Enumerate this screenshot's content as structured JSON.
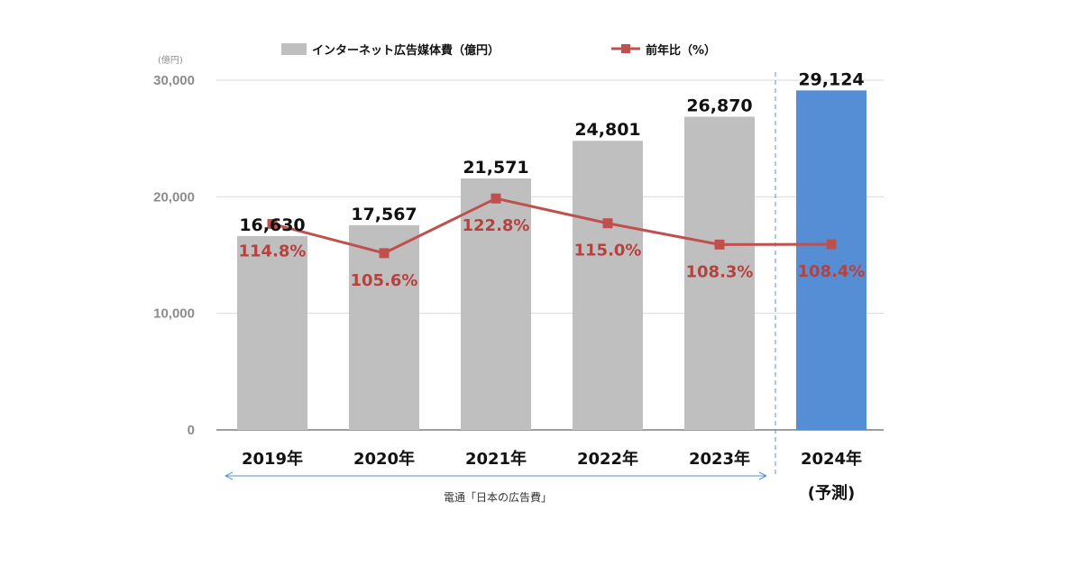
{
  "chart_data": {
    "type": "bar",
    "categories": [
      "2019年",
      "2020年",
      "2021年",
      "2022年",
      "2023年",
      "2024年"
    ],
    "forecast_sublabel": "(予測)",
    "unit_label": "(億円)",
    "yticks": [
      "0",
      "10,000",
      "20,000",
      "30,000"
    ],
    "ylim": [
      0,
      30000
    ],
    "series": [
      {
        "name": "インターネット広告媒体費（億円）",
        "kind": "bar",
        "values": [
          16630,
          17567,
          21571,
          24801,
          26870,
          29124
        ],
        "value_labels": [
          "16,630",
          "17,567",
          "21,571",
          "24,801",
          "26,870",
          "29,124"
        ]
      },
      {
        "name": "前年比（%）",
        "kind": "line",
        "values": [
          114.8,
          105.6,
          122.8,
          115.0,
          108.3,
          108.4
        ],
        "value_labels": [
          "114.8%",
          "105.6%",
          "122.8%",
          "115.0%",
          "108.3%",
          "108.4%"
        ],
        "secondary_ylim": [
          50,
          160
        ]
      }
    ],
    "source_note": "電通「日本の広告費」",
    "legend_position": "top",
    "grid": true,
    "colors": {
      "bar": "#bfbfbf",
      "forecast_bar": "#558ed5",
      "line": "#c0504d",
      "pct_label": "#b5423f",
      "grid": "#d9d9d9",
      "divider": "#558ed5"
    }
  }
}
